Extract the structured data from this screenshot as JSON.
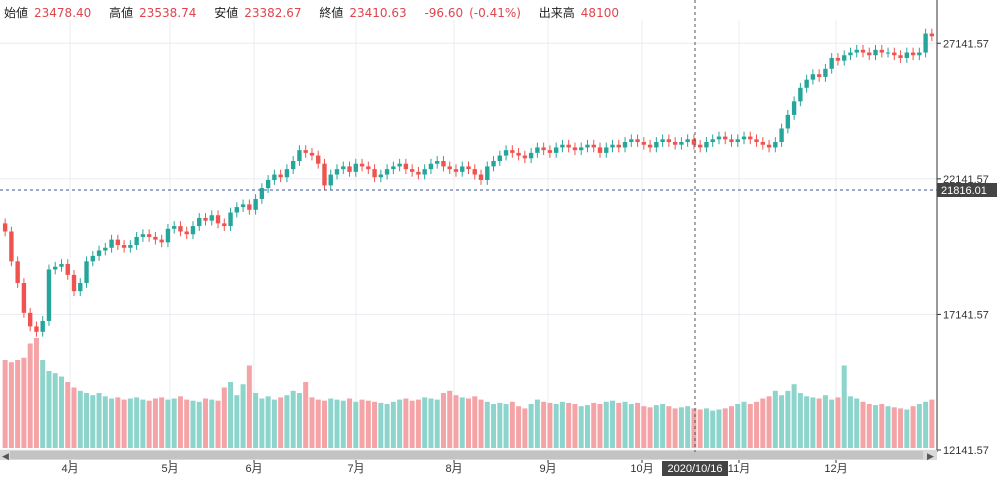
{
  "legend": {
    "open_label": "始値",
    "open_value": "23478.40",
    "high_label": "高値",
    "high_value": "23538.74",
    "low_label": "安値",
    "low_value": "23382.67",
    "close_label": "終値",
    "close_value": "23410.63",
    "change": "-96.60",
    "change_pct": "(-0.41%)",
    "volume_label": "出来高",
    "volume_value": "48100"
  },
  "crosshair": {
    "price_label": "21816.01",
    "date_label": "2020/10/16"
  },
  "colors": {
    "up": "#26a69a",
    "down": "#ef5350",
    "up_vol": "#8dd5cc",
    "down_vol": "#f4a3a6"
  },
  "chart_data": {
    "type": "candlestick",
    "x_ticks": [
      "4月",
      "5月",
      "6月",
      "7月",
      "8月",
      "9月",
      "10月",
      "11月",
      "12月"
    ],
    "y_ticks": [
      "27141.57",
      "22141.57",
      "17141.57",
      "12141.57"
    ],
    "ylim": [
      12141.57,
      28000
    ],
    "volume_pattern": "per-candle",
    "close_series": [
      20200,
      19100,
      18300,
      17200,
      16700,
      16500,
      16900,
      18800,
      18900,
      19000,
      18600,
      18000,
      18300,
      19100,
      19300,
      19500,
      19600,
      19900,
      19700,
      19600,
      19700,
      20000,
      20100,
      20000,
      19900,
      19800,
      20300,
      20400,
      20200,
      20100,
      20400,
      20700,
      20600,
      20800,
      20500,
      20400,
      20900,
      21100,
      21200,
      21000,
      21400,
      21800,
      22100,
      22300,
      22200,
      22500,
      22800,
      23200,
      23100,
      23000,
      22700,
      21900,
      22300,
      22500,
      22600,
      22400,
      22700,
      22600,
      22500,
      22200,
      22300,
      22500,
      22600,
      22700,
      22500,
      22400,
      22300,
      22500,
      22700,
      22800,
      22600,
      22500,
      22400,
      22600,
      22500,
      22300,
      22100,
      22600,
      22800,
      23000,
      23200,
      23100,
      23000,
      22900,
      23100,
      23300,
      23200,
      23100,
      23300,
      23400,
      23300,
      23200,
      23300,
      23400,
      23300,
      23100,
      23300,
      23400,
      23300,
      23500,
      23600,
      23500,
      23400,
      23300,
      23500,
      23600,
      23500,
      23400,
      23500,
      23600,
      23400,
      23300,
      23500,
      23600,
      23700,
      23600,
      23500,
      23600,
      23700,
      23600,
      23500,
      23400,
      23300,
      23500,
      24000,
      24500,
      25000,
      25500,
      25800,
      26000,
      25900,
      26200,
      26600,
      26500,
      26700,
      26800,
      26900,
      26800,
      26700,
      26900,
      26800,
      26800,
      26700,
      26600,
      26800,
      26700,
      26800,
      27500,
      27400
    ],
    "volume_series": [
      80,
      78,
      80,
      82,
      95,
      100,
      80,
      70,
      68,
      65,
      60,
      55,
      52,
      50,
      48,
      50,
      47,
      45,
      46,
      44,
      45,
      46,
      44,
      43,
      45,
      46,
      44,
      45,
      47,
      44,
      43,
      42,
      45,
      44,
      43,
      55,
      60,
      48,
      58,
      75,
      50,
      45,
      47,
      44,
      46,
      48,
      52,
      50,
      60,
      46,
      44,
      43,
      45,
      44,
      43,
      45,
      42,
      44,
      43,
      42,
      41,
      40,
      42,
      44,
      45,
      43,
      44,
      46,
      45,
      44,
      50,
      52,
      48,
      46,
      45,
      47,
      44,
      42,
      40,
      41,
      40,
      42,
      38,
      36,
      40,
      44,
      42,
      41,
      40,
      42,
      41,
      40,
      38,
      39,
      41,
      40,
      42,
      43,
      41,
      42,
      40,
      41,
      38,
      37,
      39,
      40,
      38,
      36,
      37,
      38,
      36,
      35,
      36,
      34,
      35,
      36,
      38,
      40,
      42,
      40,
      42,
      45,
      47,
      52,
      48,
      52,
      58,
      50,
      47,
      46,
      45,
      48,
      44,
      46,
      75,
      47,
      45,
      42,
      40,
      39,
      40,
      38,
      37,
      36,
      35,
      38,
      40,
      42,
      44
    ]
  }
}
